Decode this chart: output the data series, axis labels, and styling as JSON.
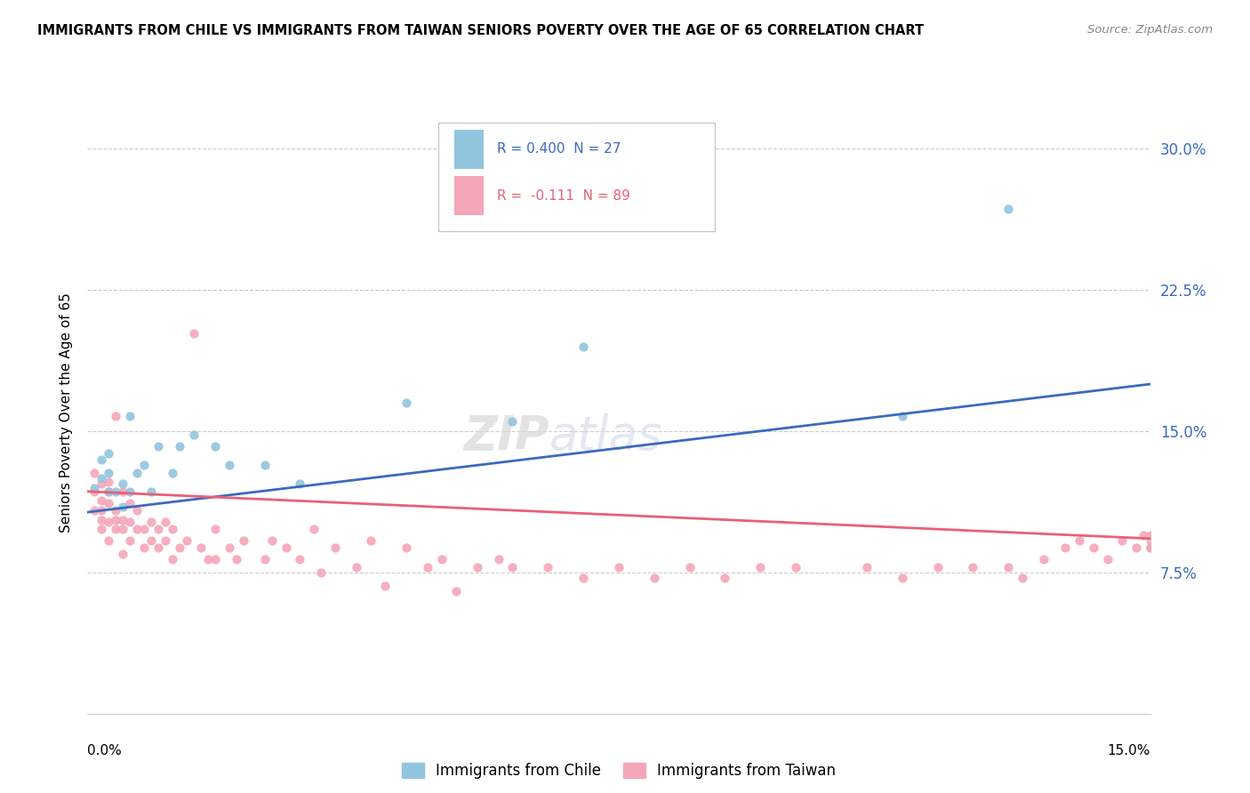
{
  "title": "IMMIGRANTS FROM CHILE VS IMMIGRANTS FROM TAIWAN SENIORS POVERTY OVER THE AGE OF 65 CORRELATION CHART",
  "source": "Source: ZipAtlas.com",
  "ylabel": "Seniors Poverty Over the Age of 65",
  "xlim": [
    0.0,
    0.15
  ],
  "ylim": [
    0.0,
    0.32
  ],
  "yticks": [
    0.075,
    0.15,
    0.225,
    0.3
  ],
  "ytick_labels": [
    "7.5%",
    "15.0%",
    "22.5%",
    "30.0%"
  ],
  "chile_color": "#92c5de",
  "taiwan_color": "#f4a6b8",
  "chile_line_color": "#3a6bbf",
  "taiwan_line_color": "#e8607a",
  "R_chile": 0.4,
  "N_chile": 27,
  "R_taiwan": -0.111,
  "N_taiwan": 89,
  "chile_line_x0": 0.0,
  "chile_line_y0": 0.107,
  "chile_line_x1": 0.15,
  "chile_line_y1": 0.175,
  "taiwan_line_x0": 0.0,
  "taiwan_line_y0": 0.118,
  "taiwan_line_x1": 0.15,
  "taiwan_line_y1": 0.093,
  "chile_points_x": [
    0.001,
    0.002,
    0.002,
    0.003,
    0.003,
    0.003,
    0.004,
    0.005,
    0.005,
    0.006,
    0.006,
    0.007,
    0.008,
    0.009,
    0.01,
    0.012,
    0.013,
    0.015,
    0.018,
    0.02,
    0.025,
    0.03,
    0.045,
    0.06,
    0.07,
    0.115,
    0.13
  ],
  "chile_points_y": [
    0.12,
    0.125,
    0.135,
    0.118,
    0.128,
    0.138,
    0.118,
    0.11,
    0.122,
    0.118,
    0.158,
    0.128,
    0.132,
    0.118,
    0.142,
    0.128,
    0.142,
    0.148,
    0.142,
    0.132,
    0.132,
    0.122,
    0.165,
    0.155,
    0.195,
    0.158,
    0.268
  ],
  "taiwan_points_x": [
    0.001,
    0.001,
    0.001,
    0.002,
    0.002,
    0.002,
    0.002,
    0.002,
    0.003,
    0.003,
    0.003,
    0.003,
    0.003,
    0.004,
    0.004,
    0.004,
    0.004,
    0.005,
    0.005,
    0.005,
    0.005,
    0.006,
    0.006,
    0.006,
    0.007,
    0.007,
    0.008,
    0.008,
    0.009,
    0.009,
    0.01,
    0.01,
    0.011,
    0.011,
    0.012,
    0.012,
    0.013,
    0.014,
    0.015,
    0.016,
    0.017,
    0.018,
    0.018,
    0.02,
    0.021,
    0.022,
    0.025,
    0.026,
    0.028,
    0.03,
    0.032,
    0.033,
    0.035,
    0.038,
    0.04,
    0.042,
    0.045,
    0.048,
    0.05,
    0.052,
    0.055,
    0.058,
    0.06,
    0.065,
    0.07,
    0.075,
    0.08,
    0.085,
    0.09,
    0.095,
    0.1,
    0.11,
    0.115,
    0.12,
    0.125,
    0.13,
    0.132,
    0.135,
    0.138,
    0.14,
    0.142,
    0.144,
    0.146,
    0.148,
    0.149,
    0.15,
    0.15,
    0.15,
    0.15
  ],
  "taiwan_points_y": [
    0.108,
    0.118,
    0.128,
    0.098,
    0.103,
    0.108,
    0.113,
    0.122,
    0.092,
    0.102,
    0.112,
    0.118,
    0.123,
    0.098,
    0.103,
    0.108,
    0.158,
    0.098,
    0.103,
    0.118,
    0.085,
    0.092,
    0.102,
    0.112,
    0.098,
    0.108,
    0.088,
    0.098,
    0.092,
    0.102,
    0.088,
    0.098,
    0.092,
    0.102,
    0.082,
    0.098,
    0.088,
    0.092,
    0.202,
    0.088,
    0.082,
    0.082,
    0.098,
    0.088,
    0.082,
    0.092,
    0.082,
    0.092,
    0.088,
    0.082,
    0.098,
    0.075,
    0.088,
    0.078,
    0.092,
    0.068,
    0.088,
    0.078,
    0.082,
    0.065,
    0.078,
    0.082,
    0.078,
    0.078,
    0.072,
    0.078,
    0.072,
    0.078,
    0.072,
    0.078,
    0.078,
    0.078,
    0.072,
    0.078,
    0.078,
    0.078,
    0.072,
    0.082,
    0.088,
    0.092,
    0.088,
    0.082,
    0.092,
    0.088,
    0.095,
    0.088,
    0.092,
    0.088,
    0.095
  ]
}
